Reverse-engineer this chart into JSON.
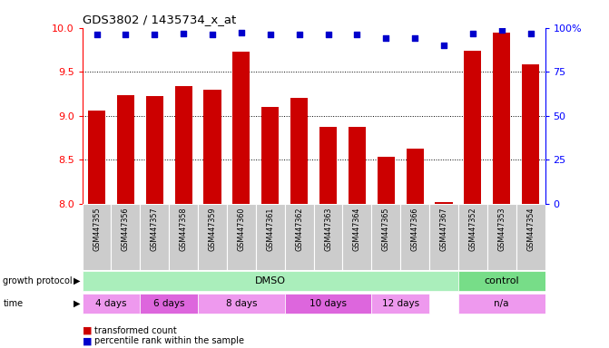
{
  "title": "GDS3802 / 1435734_x_at",
  "samples": [
    "GSM447355",
    "GSM447356",
    "GSM447357",
    "GSM447358",
    "GSM447359",
    "GSM447360",
    "GSM447361",
    "GSM447362",
    "GSM447363",
    "GSM447364",
    "GSM447365",
    "GSM447366",
    "GSM447367",
    "GSM447352",
    "GSM447353",
    "GSM447354"
  ],
  "bar_values": [
    9.06,
    9.23,
    9.22,
    9.34,
    9.3,
    9.73,
    9.1,
    9.2,
    8.87,
    8.87,
    8.53,
    8.63,
    8.02,
    9.74,
    9.95,
    9.58
  ],
  "percentile_values": [
    96,
    96,
    96,
    97,
    96,
    97.5,
    96,
    96,
    96,
    96,
    94,
    94,
    90,
    97,
    99,
    97
  ],
  "bar_color": "#cc0000",
  "percentile_color": "#0000cc",
  "ylim_left": [
    8,
    10
  ],
  "ylim_right": [
    0,
    100
  ],
  "yticks_left": [
    8,
    8.5,
    9,
    9.5,
    10
  ],
  "yticks_right": [
    0,
    25,
    50,
    75,
    100
  ],
  "ytick_labels_right": [
    "0",
    "25",
    "50",
    "75",
    "100%"
  ],
  "grid_values": [
    8.5,
    9.0,
    9.5
  ],
  "protocol_sections": [
    {
      "text": "DMSO",
      "start": 0,
      "end": 12,
      "color": "#aaeebb"
    },
    {
      "text": "control",
      "start": 13,
      "end": 15,
      "color": "#77dd88"
    }
  ],
  "time_map": [
    {
      "text": "4 days",
      "start": 0,
      "end": 1,
      "color": "#ee99ee"
    },
    {
      "text": "6 days",
      "start": 2,
      "end": 3,
      "color": "#dd66dd"
    },
    {
      "text": "8 days",
      "start": 4,
      "end": 6,
      "color": "#ee99ee"
    },
    {
      "text": "10 days",
      "start": 7,
      "end": 9,
      "color": "#dd66dd"
    },
    {
      "text": "12 days",
      "start": 10,
      "end": 11,
      "color": "#ee99ee"
    },
    {
      "text": "n/a",
      "start": 13,
      "end": 15,
      "color": "#ee99ee"
    }
  ],
  "legend": [
    {
      "color": "#cc0000",
      "label": "transformed count"
    },
    {
      "color": "#0000cc",
      "label": "percentile rank within the sample"
    }
  ],
  "tick_area_color": "#cccccc"
}
